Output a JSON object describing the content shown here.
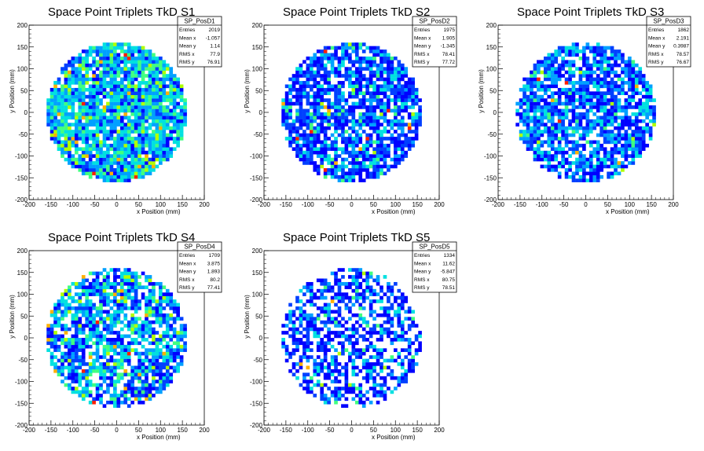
{
  "chart_data": [
    {
      "type": "heatmap",
      "title": "Space Point Triplets TkD S1",
      "xlabel": "x Position (mm)",
      "ylabel": "y Position (mm)",
      "xlim": [
        -200,
        200
      ],
      "ylim": [
        -200,
        200
      ],
      "xticks": [
        -200,
        -150,
        -100,
        -50,
        0,
        50,
        100,
        150,
        200
      ],
      "yticks": [
        -200,
        -150,
        -100,
        -50,
        0,
        50,
        100,
        150,
        200
      ],
      "radius": 160,
      "stats": {
        "name": "SP_PosD1",
        "rows": [
          [
            "Entries",
            "2019"
          ],
          [
            "Mean x",
            "-1.057"
          ],
          [
            "Mean y",
            "1.14"
          ],
          [
            "RMS x",
            "77.9"
          ],
          [
            "RMS y",
            "76.91"
          ]
        ]
      }
    },
    {
      "type": "heatmap",
      "title": "Space Point Triplets TkD S2",
      "xlabel": "x Position (mm)",
      "ylabel": "y Position (mm)",
      "xlim": [
        -200,
        200
      ],
      "ylim": [
        -200,
        200
      ],
      "xticks": [
        -200,
        -150,
        -100,
        -50,
        0,
        50,
        100,
        150,
        200
      ],
      "yticks": [
        -200,
        -150,
        -100,
        -50,
        0,
        50,
        100,
        150,
        200
      ],
      "radius": 160,
      "stats": {
        "name": "SP_PosD2",
        "rows": [
          [
            "Entries",
            "1975"
          ],
          [
            "Mean x",
            "1.905"
          ],
          [
            "Mean y",
            "-1.345"
          ],
          [
            "RMS x",
            "78.41"
          ],
          [
            "RMS y",
            "77.72"
          ]
        ]
      }
    },
    {
      "type": "heatmap",
      "title": "Space Point Triplets TkD S3",
      "xlabel": "x Position (mm)",
      "ylabel": "y Position (mm)",
      "xlim": [
        -200,
        200
      ],
      "ylim": [
        -200,
        200
      ],
      "xticks": [
        -200,
        -150,
        -100,
        -50,
        0,
        50,
        100,
        150,
        200
      ],
      "yticks": [
        -200,
        -150,
        -100,
        -50,
        0,
        50,
        100,
        150,
        200
      ],
      "radius": 160,
      "stats": {
        "name": "SP_PosD3",
        "rows": [
          [
            "Entries",
            "1862"
          ],
          [
            "Mean x",
            "2.191"
          ],
          [
            "Mean y",
            "0.3987"
          ],
          [
            "RMS x",
            "78.57"
          ],
          [
            "RMS y",
            "76.67"
          ]
        ]
      }
    },
    {
      "type": "heatmap",
      "title": "Space Point Triplets TkD S4",
      "xlabel": "x Position (mm)",
      "ylabel": "y Position (mm)",
      "xlim": [
        -200,
        200
      ],
      "ylim": [
        -200,
        200
      ],
      "xticks": [
        -200,
        -150,
        -100,
        -50,
        0,
        50,
        100,
        150,
        200
      ],
      "yticks": [
        -200,
        -150,
        -100,
        -50,
        0,
        50,
        100,
        150,
        200
      ],
      "radius": 160,
      "stats": {
        "name": "SP_PosD4",
        "rows": [
          [
            "Entries",
            "1709"
          ],
          [
            "Mean x",
            "3.875"
          ],
          [
            "Mean y",
            "1.893"
          ],
          [
            "RMS x",
            "80.2"
          ],
          [
            "RMS y",
            "77.41"
          ]
        ]
      }
    },
    {
      "type": "heatmap",
      "title": "Space Point Triplets TkD S5",
      "xlabel": "x Position (mm)",
      "ylabel": "y Position (mm)",
      "xlim": [
        -200,
        200
      ],
      "ylim": [
        -200,
        200
      ],
      "xticks": [
        -200,
        -150,
        -100,
        -50,
        0,
        50,
        100,
        150,
        200
      ],
      "yticks": [
        -200,
        -150,
        -100,
        -50,
        0,
        50,
        100,
        150,
        200
      ],
      "radius": 160,
      "stats": {
        "name": "SP_PosD5",
        "rows": [
          [
            "Entries",
            "1334"
          ],
          [
            "Mean x",
            "11.62"
          ],
          [
            "Mean y",
            "-5.847"
          ],
          [
            "RMS x",
            "80.75"
          ],
          [
            "RMS y",
            "78.51"
          ]
        ]
      }
    }
  ],
  "colors": {
    "palette": [
      "#0000ff",
      "#0040ff",
      "#00a0ff",
      "#00e0e0",
      "#40ff80",
      "#b0ff00",
      "#ffb000",
      "#ff2000"
    ],
    "axis": "#000000",
    "background": "#ffffff"
  }
}
